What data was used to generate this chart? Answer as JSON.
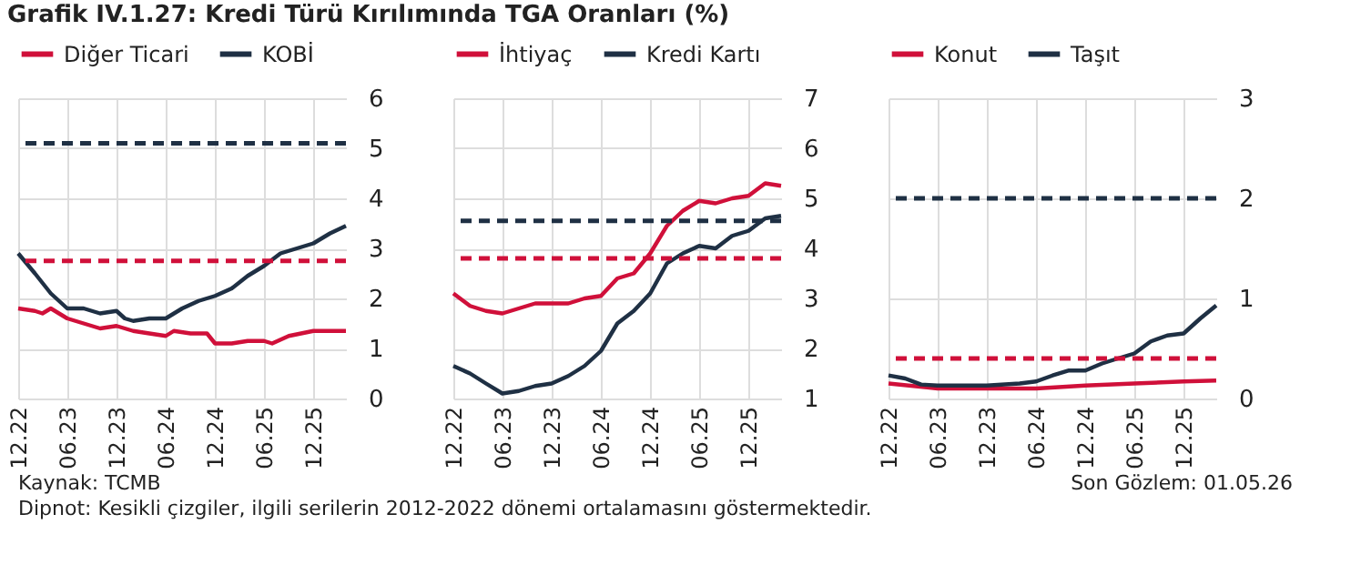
{
  "chart_data": [
    {
      "type": "line",
      "title": "Grafik IV.1.27: Kredi Türü Kırılımında TGA Oranları (%)",
      "legend": "top",
      "grid": true,
      "line_style": "solid",
      "marker": "none",
      "xlim": [
        "2022-12",
        "2026-04"
      ],
      "xticks": [
        {
          "value": "2022-12",
          "label": "12.22"
        },
        {
          "value": "2023-06",
          "label": "06.23"
        },
        {
          "value": "2023-12",
          "label": "12.23"
        },
        {
          "value": "2024-06",
          "label": "06.24"
        },
        {
          "value": "2024-12",
          "label": "12.24"
        },
        {
          "value": "2025-06",
          "label": "06.25"
        },
        {
          "value": "2025-12",
          "label": "12.25"
        }
      ],
      "ylim": [
        0,
        6
      ],
      "yticks": [
        0,
        1,
        2,
        3,
        4,
        5,
        6
      ],
      "series": [
        {
          "name": "Diğer Ticari",
          "color": "#d0103a",
          "x": [
            "2022-12",
            "2023-02",
            "2023-03",
            "2023-04",
            "2023-06",
            "2023-08",
            "2023-10",
            "2023-12",
            "2024-02",
            "2024-04",
            "2024-06",
            "2024-07",
            "2024-09",
            "2024-11",
            "2024-12",
            "2025-02",
            "2025-04",
            "2025-06",
            "2025-07",
            "2025-09",
            "2025-12",
            "2026-02",
            "2026-04"
          ],
          "values": [
            1.8,
            1.75,
            1.7,
            1.8,
            1.6,
            1.5,
            1.4,
            1.45,
            1.35,
            1.3,
            1.25,
            1.35,
            1.3,
            1.3,
            1.1,
            1.1,
            1.15,
            1.15,
            1.1,
            1.25,
            1.35,
            1.35,
            1.35
          ]
        },
        {
          "name": "KOBİ",
          "color": "#1f3044",
          "x": [
            "2022-12",
            "2023-02",
            "2023-04",
            "2023-06",
            "2023-08",
            "2023-10",
            "2023-12",
            "2024-01",
            "2024-02",
            "2024-04",
            "2024-06",
            "2024-08",
            "2024-10",
            "2024-12",
            "2025-02",
            "2025-04",
            "2025-06",
            "2025-08",
            "2025-10",
            "2025-12",
            "2026-02",
            "2026-04"
          ],
          "values": [
            2.9,
            2.5,
            2.1,
            1.8,
            1.8,
            1.7,
            1.75,
            1.6,
            1.55,
            1.6,
            1.6,
            1.8,
            1.95,
            2.05,
            2.2,
            2.45,
            2.65,
            2.9,
            3.0,
            3.1,
            3.3,
            3.45
          ]
        }
      ],
      "ref_lines": [
        {
          "axis": "y",
          "value": 2.75,
          "color": "#d0103a",
          "line_style": "dashed"
        },
        {
          "axis": "y",
          "value": 5.1,
          "color": "#1f3044",
          "line_style": "dashed"
        }
      ]
    },
    {
      "type": "line",
      "legend": "top",
      "grid": true,
      "line_style": "solid",
      "marker": "none",
      "xlim": [
        "2022-12",
        "2026-04"
      ],
      "xticks": [
        {
          "value": "2022-12",
          "label": "12.22"
        },
        {
          "value": "2023-06",
          "label": "06.23"
        },
        {
          "value": "2023-12",
          "label": "12.23"
        },
        {
          "value": "2024-06",
          "label": "06.24"
        },
        {
          "value": "2024-12",
          "label": "12.24"
        },
        {
          "value": "2025-06",
          "label": "06.25"
        },
        {
          "value": "2025-12",
          "label": "12.25"
        }
      ],
      "ylim": [
        1,
        7
      ],
      "yticks": [
        1,
        2,
        3,
        4,
        5,
        6,
        7
      ],
      "series": [
        {
          "name": "İhtiyaç",
          "color": "#d0103a",
          "x": [
            "2022-12",
            "2023-02",
            "2023-04",
            "2023-06",
            "2023-08",
            "2023-10",
            "2023-12",
            "2024-02",
            "2024-04",
            "2024-06",
            "2024-08",
            "2024-10",
            "2024-12",
            "2025-02",
            "2025-04",
            "2025-06",
            "2025-08",
            "2025-10",
            "2025-12",
            "2026-02",
            "2026-04"
          ],
          "values": [
            3.1,
            2.85,
            2.75,
            2.7,
            2.8,
            2.9,
            2.9,
            2.9,
            3.0,
            3.05,
            3.4,
            3.5,
            3.9,
            4.45,
            4.75,
            4.95,
            4.9,
            5.0,
            5.05,
            5.3,
            5.25
          ]
        },
        {
          "name": "Kredi Kartı",
          "color": "#1f3044",
          "x": [
            "2022-12",
            "2023-02",
            "2023-04",
            "2023-06",
            "2023-08",
            "2023-10",
            "2023-12",
            "2024-02",
            "2024-04",
            "2024-06",
            "2024-08",
            "2024-10",
            "2024-12",
            "2025-02",
            "2025-04",
            "2025-06",
            "2025-08",
            "2025-10",
            "2025-12",
            "2026-02",
            "2026-04"
          ],
          "values": [
            1.65,
            1.5,
            1.3,
            1.1,
            1.15,
            1.25,
            1.3,
            1.45,
            1.65,
            1.95,
            2.5,
            2.75,
            3.1,
            3.7,
            3.9,
            4.05,
            4.0,
            4.25,
            4.35,
            4.6,
            4.65
          ]
        }
      ],
      "ref_lines": [
        {
          "axis": "y",
          "value": 3.8,
          "color": "#d0103a",
          "line_style": "dashed"
        },
        {
          "axis": "y",
          "value": 4.55,
          "color": "#1f3044",
          "line_style": "dashed"
        }
      ]
    },
    {
      "type": "line",
      "legend": "top",
      "grid": true,
      "line_style": "solid",
      "marker": "none",
      "xlim": [
        "2022-12",
        "2026-04"
      ],
      "xticks": [
        {
          "value": "2022-12",
          "label": "12.22"
        },
        {
          "value": "2023-06",
          "label": "06.23"
        },
        {
          "value": "2023-12",
          "label": "12.23"
        },
        {
          "value": "2024-06",
          "label": "06.24"
        },
        {
          "value": "2024-12",
          "label": "12.24"
        },
        {
          "value": "2025-06",
          "label": "06.25"
        },
        {
          "value": "2025-12",
          "label": "12.25"
        }
      ],
      "ylim": [
        0,
        3
      ],
      "yticks": [
        0,
        1,
        2,
        3
      ],
      "series": [
        {
          "name": "Konut",
          "color": "#d0103a",
          "x": [
            "2022-12",
            "2023-06",
            "2023-12",
            "2024-06",
            "2024-12",
            "2025-06",
            "2025-12",
            "2026-04"
          ],
          "values": [
            0.15,
            0.1,
            0.1,
            0.1,
            0.13,
            0.15,
            0.17,
            0.18
          ]
        },
        {
          "name": "Taşıt",
          "color": "#1f3044",
          "x": [
            "2022-12",
            "2023-02",
            "2023-04",
            "2023-06",
            "2023-12",
            "2024-04",
            "2024-06",
            "2024-08",
            "2024-10",
            "2024-12",
            "2025-02",
            "2025-04",
            "2025-06",
            "2025-08",
            "2025-10",
            "2025-12",
            "2026-02",
            "2026-04"
          ],
          "values": [
            0.23,
            0.2,
            0.14,
            0.13,
            0.13,
            0.15,
            0.17,
            0.23,
            0.28,
            0.28,
            0.35,
            0.4,
            0.45,
            0.57,
            0.63,
            0.65,
            0.8,
            0.93
          ]
        }
      ],
      "ref_lines": [
        {
          "axis": "y",
          "value": 0.4,
          "color": "#d0103a",
          "line_style": "dashed"
        },
        {
          "axis": "y",
          "value": 2,
          "color": "#1f3044",
          "line_style": "dashed"
        }
      ],
      "annotations": [
        "Kaynak: TCMB",
        "Son Gözlem: 01.05.26",
        "Dipnot: Kesikli çizgiler, ilgili serilerin 2012-2022 dönemi ortalamasını göstermektedir."
      ]
    }
  ]
}
